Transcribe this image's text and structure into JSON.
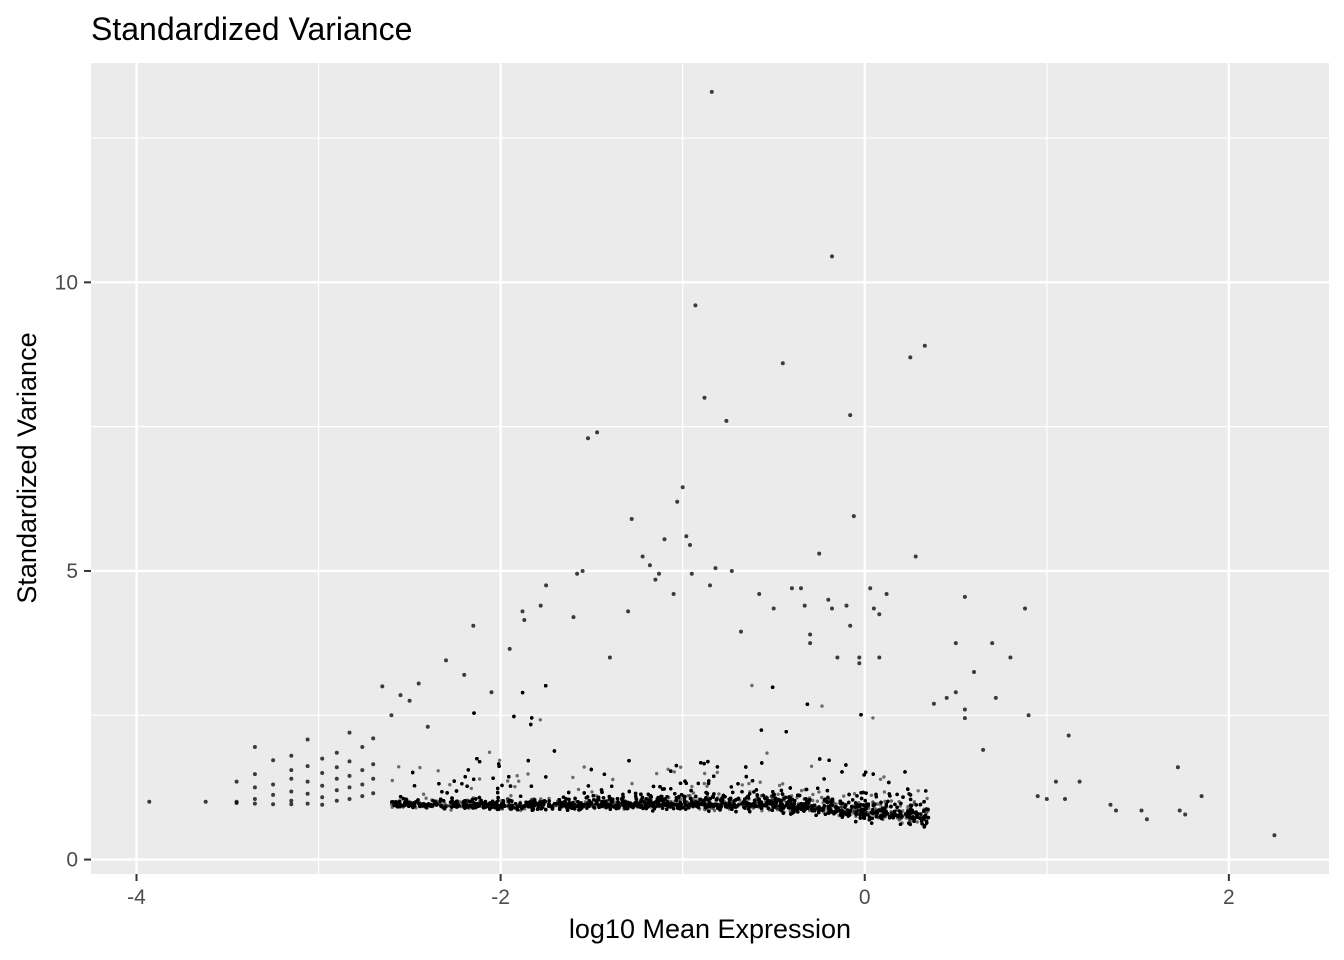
{
  "chart_data": {
    "type": "scatter",
    "title": "Standardized Variance",
    "xlabel": "log10 Mean Expression",
    "ylabel": "Standardized Variance",
    "xlim": [
      -4.25,
      2.55
    ],
    "ylim": [
      -0.25,
      13.8
    ],
    "x_ticks": [
      -4,
      -2,
      0,
      2
    ],
    "x_tick_labels": [
      "-4",
      "-2",
      "0",
      "2"
    ],
    "y_ticks": [
      0,
      5,
      10
    ],
    "y_tick_labels": [
      "0",
      "5",
      "10"
    ],
    "grid": true,
    "legend": "none",
    "colors": {
      "panel_background": "#ebebeb",
      "grid": "#ffffff",
      "points": "#000000"
    },
    "x_minor_breaks": [
      -3,
      -1,
      1
    ],
    "y_minor_breaks": [
      2.5,
      7.5,
      12.5
    ],
    "dense_band": {
      "x_range": [
        -2.6,
        0.35
      ],
      "center_y_at_x": [
        [
          -2.6,
          0.95
        ],
        [
          -2.0,
          0.92
        ],
        [
          -1.5,
          0.93
        ],
        [
          -1.0,
          0.95
        ],
        [
          -0.5,
          0.94
        ],
        [
          0.0,
          0.8
        ],
        [
          0.35,
          0.72
        ]
      ],
      "approx_point_count": 9000
    },
    "points": [
      {
        "x": -3.93,
        "y": 1.0
      },
      {
        "x": -3.62,
        "y": 1.0
      },
      {
        "x": -3.45,
        "y": 1.35
      },
      {
        "x": -3.45,
        "y": 1.0
      },
      {
        "x": -3.45,
        "y": 0.98
      },
      {
        "x": -3.35,
        "y": 1.95
      },
      {
        "x": -3.35,
        "y": 1.48
      },
      {
        "x": -3.35,
        "y": 1.25
      },
      {
        "x": -3.35,
        "y": 1.05
      },
      {
        "x": -3.35,
        "y": 0.97
      },
      {
        "x": -3.25,
        "y": 1.72
      },
      {
        "x": -3.25,
        "y": 1.3
      },
      {
        "x": -3.25,
        "y": 1.12
      },
      {
        "x": -3.25,
        "y": 0.96
      },
      {
        "x": -3.15,
        "y": 1.8
      },
      {
        "x": -3.15,
        "y": 1.55
      },
      {
        "x": -3.15,
        "y": 1.4
      },
      {
        "x": -3.15,
        "y": 1.18
      },
      {
        "x": -3.15,
        "y": 1.02
      },
      {
        "x": -3.15,
        "y": 0.96
      },
      {
        "x": -3.06,
        "y": 2.08
      },
      {
        "x": -3.06,
        "y": 1.62
      },
      {
        "x": -3.06,
        "y": 1.35
      },
      {
        "x": -3.06,
        "y": 1.14
      },
      {
        "x": -3.06,
        "y": 0.97
      },
      {
        "x": -2.98,
        "y": 1.75
      },
      {
        "x": -2.98,
        "y": 1.5
      },
      {
        "x": -2.98,
        "y": 1.28
      },
      {
        "x": -2.98,
        "y": 1.08
      },
      {
        "x": -2.98,
        "y": 0.95
      },
      {
        "x": -2.9,
        "y": 1.85
      },
      {
        "x": -2.9,
        "y": 1.6
      },
      {
        "x": -2.9,
        "y": 1.4
      },
      {
        "x": -2.9,
        "y": 1.2
      },
      {
        "x": -2.9,
        "y": 1.02
      },
      {
        "x": -2.83,
        "y": 2.2
      },
      {
        "x": -2.83,
        "y": 1.7
      },
      {
        "x": -2.83,
        "y": 1.45
      },
      {
        "x": -2.83,
        "y": 1.25
      },
      {
        "x": -2.83,
        "y": 1.05
      },
      {
        "x": -2.76,
        "y": 1.95
      },
      {
        "x": -2.76,
        "y": 1.55
      },
      {
        "x": -2.76,
        "y": 1.3
      },
      {
        "x": -2.76,
        "y": 1.1
      },
      {
        "x": -2.7,
        "y": 2.1
      },
      {
        "x": -2.7,
        "y": 1.65
      },
      {
        "x": -2.7,
        "y": 1.4
      },
      {
        "x": -2.7,
        "y": 1.15
      },
      {
        "x": -2.65,
        "y": 3.0
      },
      {
        "x": -2.6,
        "y": 2.5
      },
      {
        "x": -2.55,
        "y": 2.85
      },
      {
        "x": -2.5,
        "y": 2.75
      },
      {
        "x": -2.45,
        "y": 3.05
      },
      {
        "x": -2.4,
        "y": 2.3
      },
      {
        "x": -2.3,
        "y": 3.45
      },
      {
        "x": -2.2,
        "y": 3.2
      },
      {
        "x": -2.15,
        "y": 4.05
      },
      {
        "x": -2.05,
        "y": 2.9
      },
      {
        "x": -1.95,
        "y": 3.65
      },
      {
        "x": -1.88,
        "y": 4.3
      },
      {
        "x": -1.87,
        "y": 4.15
      },
      {
        "x": -1.78,
        "y": 4.4
      },
      {
        "x": -1.75,
        "y": 4.75
      },
      {
        "x": -1.6,
        "y": 4.2
      },
      {
        "x": -1.58,
        "y": 4.95
      },
      {
        "x": -1.55,
        "y": 5.0
      },
      {
        "x": -1.52,
        "y": 7.3
      },
      {
        "x": -1.47,
        "y": 7.4
      },
      {
        "x": -1.4,
        "y": 3.5
      },
      {
        "x": -1.3,
        "y": 4.3
      },
      {
        "x": -1.28,
        "y": 5.9
      },
      {
        "x": -1.22,
        "y": 5.25
      },
      {
        "x": -1.18,
        "y": 5.1
      },
      {
        "x": -1.15,
        "y": 4.85
      },
      {
        "x": -1.13,
        "y": 4.95
      },
      {
        "x": -1.1,
        "y": 5.55
      },
      {
        "x": -1.05,
        "y": 4.6
      },
      {
        "x": -1.03,
        "y": 6.2
      },
      {
        "x": -1.0,
        "y": 6.45
      },
      {
        "x": -0.98,
        "y": 5.6
      },
      {
        "x": -0.96,
        "y": 5.45
      },
      {
        "x": -0.95,
        "y": 4.95
      },
      {
        "x": -0.93,
        "y": 9.6
      },
      {
        "x": -0.88,
        "y": 8.0
      },
      {
        "x": -0.85,
        "y": 4.75
      },
      {
        "x": -0.84,
        "y": 13.3
      },
      {
        "x": -0.82,
        "y": 5.05
      },
      {
        "x": -0.76,
        "y": 7.6
      },
      {
        "x": -0.73,
        "y": 5.0
      },
      {
        "x": -0.68,
        "y": 3.95
      },
      {
        "x": -0.58,
        "y": 4.6
      },
      {
        "x": -0.5,
        "y": 4.35
      },
      {
        "x": -0.45,
        "y": 8.6
      },
      {
        "x": -0.4,
        "y": 4.7
      },
      {
        "x": -0.35,
        "y": 4.7
      },
      {
        "x": -0.33,
        "y": 4.4
      },
      {
        "x": -0.3,
        "y": 3.9
      },
      {
        "x": -0.3,
        "y": 3.75
      },
      {
        "x": -0.25,
        "y": 5.3
      },
      {
        "x": -0.2,
        "y": 4.5
      },
      {
        "x": -0.18,
        "y": 10.45
      },
      {
        "x": -0.18,
        "y": 4.35
      },
      {
        "x": -0.15,
        "y": 3.5
      },
      {
        "x": -0.1,
        "y": 4.4
      },
      {
        "x": -0.08,
        "y": 7.7
      },
      {
        "x": -0.08,
        "y": 4.05
      },
      {
        "x": -0.06,
        "y": 5.95
      },
      {
        "x": -0.03,
        "y": 3.5
      },
      {
        "x": -0.03,
        "y": 3.4
      },
      {
        "x": 0.03,
        "y": 4.7
      },
      {
        "x": 0.05,
        "y": 4.35
      },
      {
        "x": 0.08,
        "y": 4.25
      },
      {
        "x": 0.08,
        "y": 3.5
      },
      {
        "x": 0.12,
        "y": 4.6
      },
      {
        "x": 0.25,
        "y": 8.7
      },
      {
        "x": 0.28,
        "y": 5.25
      },
      {
        "x": 0.33,
        "y": 8.9
      },
      {
        "x": 0.38,
        "y": 2.7
      },
      {
        "x": 0.45,
        "y": 2.8
      },
      {
        "x": 0.5,
        "y": 3.75
      },
      {
        "x": 0.5,
        "y": 2.9
      },
      {
        "x": 0.55,
        "y": 4.55
      },
      {
        "x": 0.55,
        "y": 2.6
      },
      {
        "x": 0.55,
        "y": 2.45
      },
      {
        "x": 0.6,
        "y": 3.25
      },
      {
        "x": 0.65,
        "y": 1.9
      },
      {
        "x": 0.7,
        "y": 3.75
      },
      {
        "x": 0.72,
        "y": 2.8
      },
      {
        "x": 0.8,
        "y": 3.5
      },
      {
        "x": 0.88,
        "y": 4.35
      },
      {
        "x": 0.9,
        "y": 2.5
      },
      {
        "x": 0.95,
        "y": 1.1
      },
      {
        "x": 1.0,
        "y": 1.05
      },
      {
        "x": 1.05,
        "y": 1.35
      },
      {
        "x": 1.1,
        "y": 1.05
      },
      {
        "x": 1.12,
        "y": 2.15
      },
      {
        "x": 1.18,
        "y": 1.35
      },
      {
        "x": 1.35,
        "y": 0.95
      },
      {
        "x": 1.38,
        "y": 0.85
      },
      {
        "x": 1.52,
        "y": 0.85
      },
      {
        "x": 1.55,
        "y": 0.7
      },
      {
        "x": 1.72,
        "y": 1.6
      },
      {
        "x": 1.73,
        "y": 0.85
      },
      {
        "x": 1.76,
        "y": 0.78
      },
      {
        "x": 1.85,
        "y": 1.1
      },
      {
        "x": 2.25,
        "y": 0.42
      }
    ]
  }
}
